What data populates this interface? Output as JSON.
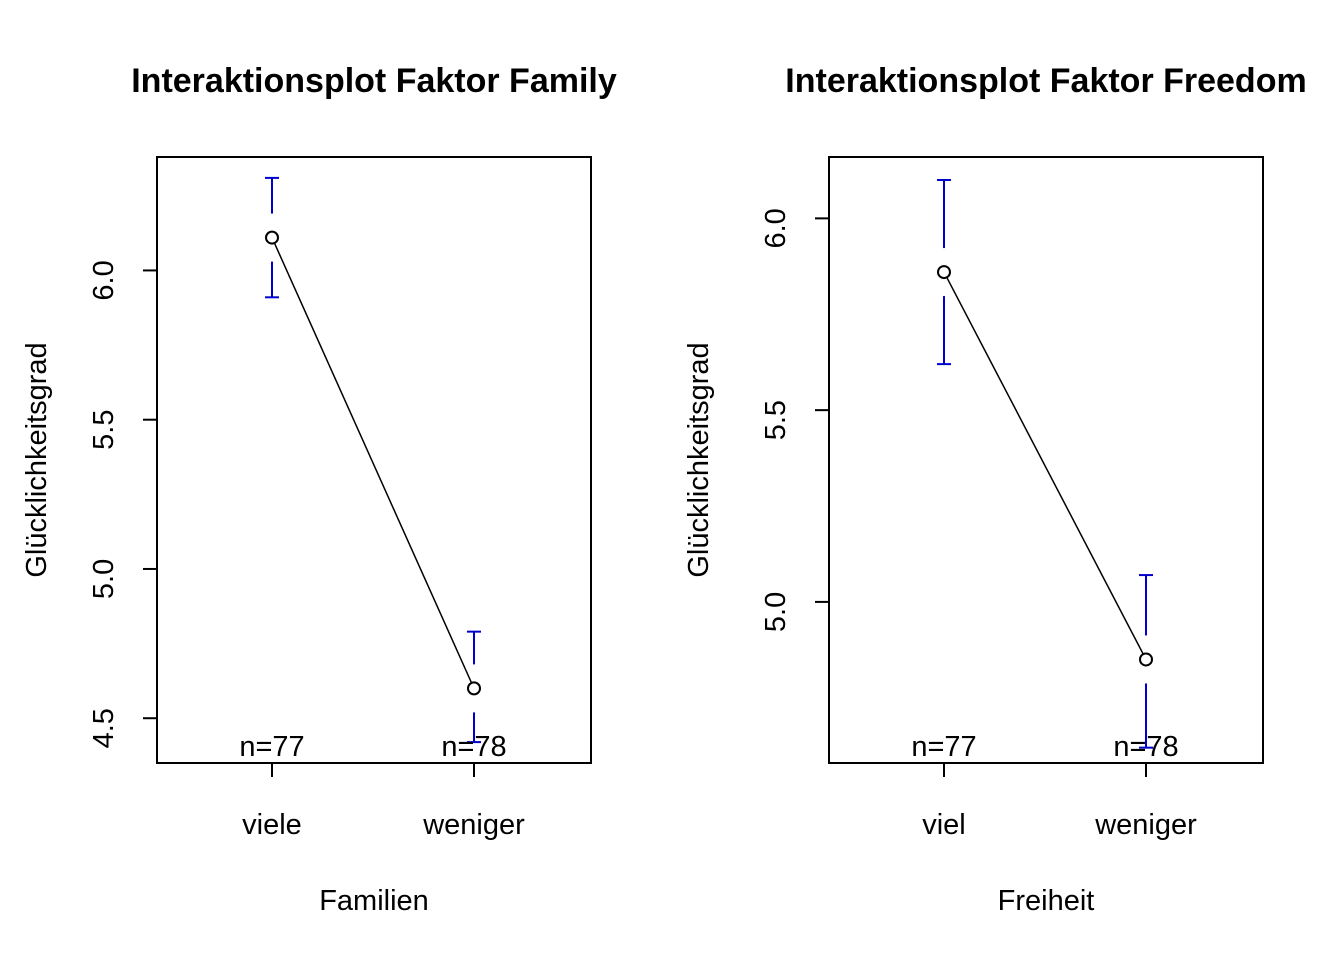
{
  "chart_data": [
    {
      "type": "line",
      "title": "Interaktionsplot Faktor Family",
      "xlabel": "Familien",
      "ylabel": "Glücklichkeitsgrad",
      "categories": [
        "viele",
        "weniger"
      ],
      "means": [
        6.11,
        4.6
      ],
      "ci_upper": [
        6.31,
        4.79
      ],
      "ci_lower": [
        5.91,
        4.42
      ],
      "n_labels": [
        "n=77",
        "n=78"
      ],
      "yticks": [
        4.5,
        5.0,
        5.5,
        6.0
      ],
      "ytick_labels": [
        "4.5",
        "5.0",
        "5.5",
        "6.0"
      ],
      "ylim": [
        4.35,
        6.38
      ],
      "grid": false,
      "legend": "none",
      "colors": {
        "line": "#000000",
        "error_bar": "#0000CD"
      }
    },
    {
      "type": "line",
      "title": "Interaktionsplot Faktor Freedom",
      "xlabel": "Freiheit",
      "ylabel": "Glücklichkeitsgrad",
      "categories": [
        "viel",
        "weniger"
      ],
      "means": [
        5.86,
        4.85
      ],
      "ci_upper": [
        6.1,
        5.07
      ],
      "ci_lower": [
        5.62,
        4.62
      ],
      "n_labels": [
        "n=77",
        "n=78"
      ],
      "yticks": [
        5.0,
        5.5,
        6.0
      ],
      "ytick_labels": [
        "5.0",
        "5.5",
        "6.0"
      ],
      "ylim": [
        4.58,
        6.16
      ],
      "grid": false,
      "legend": "none",
      "colors": {
        "line": "#000000",
        "error_bar": "#0000CD"
      }
    }
  ]
}
